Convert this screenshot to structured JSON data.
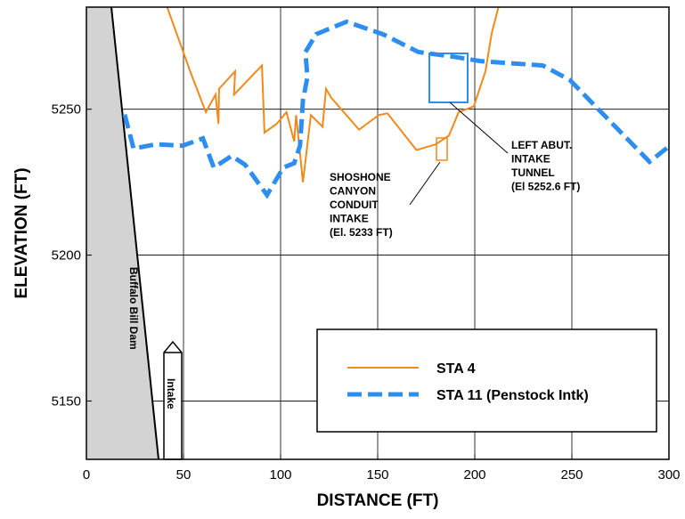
{
  "chart_data": {
    "type": "line",
    "xlabel": "DISTANCE (FT)",
    "ylabel": "ELEVATION (FT)",
    "xlim": [
      0,
      300
    ],
    "ylim": [
      5130,
      5285
    ],
    "xticks": [
      0,
      50,
      100,
      150,
      200,
      250,
      300
    ],
    "yticks": [
      5150,
      5200,
      5250
    ],
    "grid": true,
    "series": [
      {
        "name": "STA 4",
        "color": "#f08a1c",
        "dashed": false,
        "x": [
          41.3,
          54,
          61.5,
          66.5,
          68,
          68.3,
          76.6,
          76,
          90.4,
          91.7,
          98,
          103,
          107,
          108,
          111.5,
          115.6,
          121.6,
          123.4,
          126,
          140.4,
          150.5,
          155,
          170,
          180,
          186.7,
          191.7,
          199.5,
          205.5,
          208.7,
          212.4
        ],
        "values": [
          5285.5,
          5262,
          5249,
          5255,
          5245,
          5257,
          5263,
          5255,
          5265,
          5242,
          5245,
          5249,
          5239,
          5248,
          5225,
          5248,
          5244,
          5257,
          5254,
          5243,
          5248,
          5248.6,
          5236,
          5238,
          5241,
          5249,
          5251,
          5263,
          5276,
          5285.5
        ]
      },
      {
        "name": "STA 11 (Penstock Intk)",
        "color": "#2d8ef0",
        "dashed": true,
        "x": [
          19.7,
          24.3,
          35.8,
          49.5,
          60,
          65.6,
          74.8,
          81.7,
          93,
          101.4,
          107,
          110,
          111.5,
          113.8,
          112.8,
          118.3,
          134,
          152.7,
          171,
          189,
          202.8,
          235,
          249,
          290,
          299.5
        ],
        "values": [
          5248.2,
          5236.5,
          5238,
          5237.5,
          5240,
          5230,
          5234,
          5231,
          5220.6,
          5230,
          5231.5,
          5237.5,
          5253,
          5261,
          5269.6,
          5275.7,
          5280,
          5275.7,
          5269.6,
          5268,
          5266.5,
          5265,
          5260,
          5232,
          5237
        ]
      }
    ],
    "annotations": {
      "shoshone": [
        "SHOSHONE",
        "CANYON",
        "CONDUIT",
        "INTAKE",
        "(El. 5233 FT)"
      ],
      "left_abut": [
        "LEFT ABUT.",
        "INTAKE",
        "TUNNEL",
        "(El 5252.6 FT)"
      ],
      "dam": "Buffalo Bill Dam",
      "intake": "Intake"
    }
  }
}
